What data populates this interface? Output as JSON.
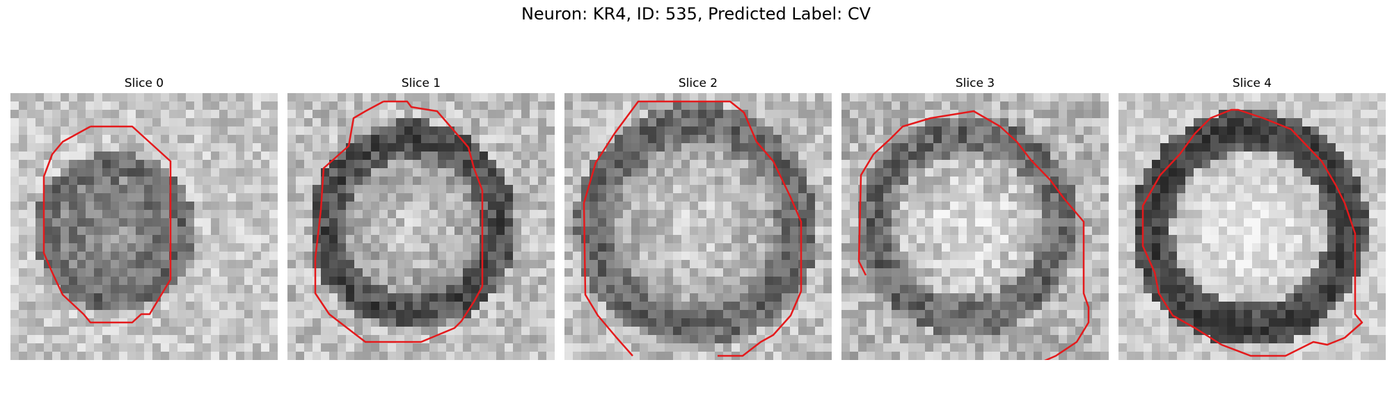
{
  "figure": {
    "title": "Neuron: KR4, ID: 535, Predicted Label: CV"
  },
  "slices": [
    {
      "label": "Slice 0"
    },
    {
      "label": "Slice 1"
    },
    {
      "label": "Slice 2"
    },
    {
      "label": "Slice 3"
    },
    {
      "label": "Slice 4"
    }
  ],
  "colors": {
    "contour": "#e41a1c",
    "background": "#ffffff"
  },
  "colormap": "grayscale"
}
